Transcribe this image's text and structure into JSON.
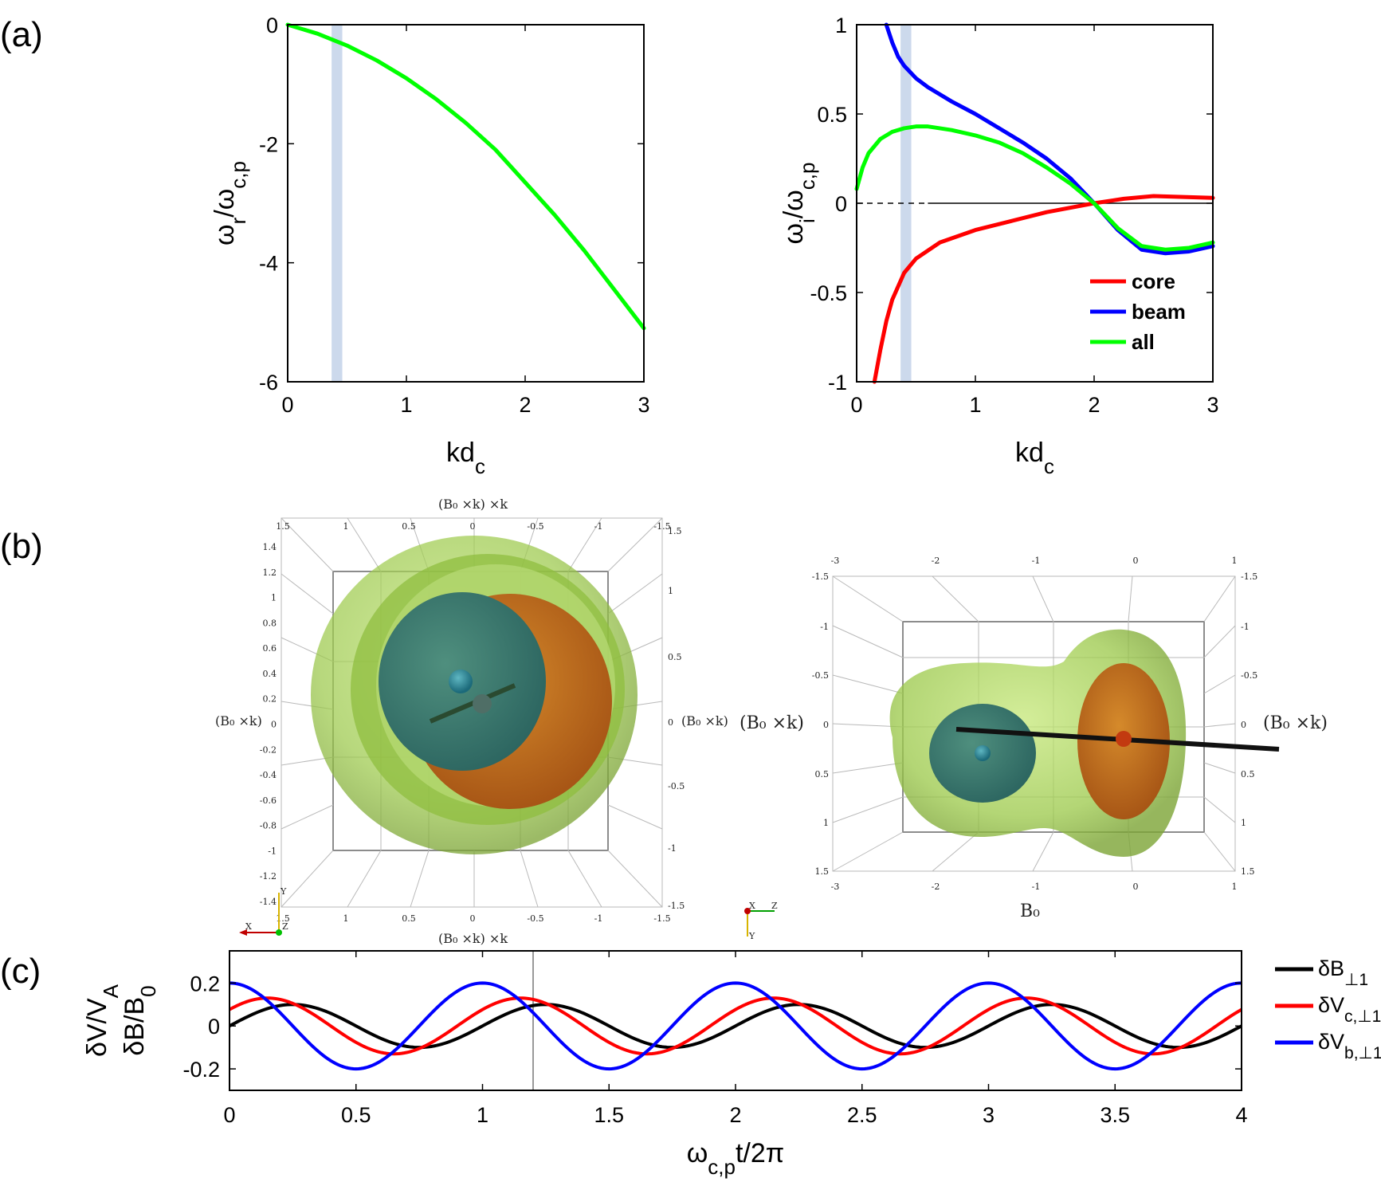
{
  "panel_labels": {
    "a": "(a)",
    "b": "(b)",
    "c": "(c)"
  },
  "colors": {
    "core": "#ff0000",
    "beam": "#0000ff",
    "all": "#00ff00",
    "highlight": "#c6d5ea",
    "dB": "#000000",
    "dVc": "#ff0000",
    "dVb": "#0000ff"
  },
  "chart_data": [
    {
      "id": "a-left",
      "type": "line",
      "xlabel_main": "kd",
      "xlabel_sub": "c",
      "ylabel": "ω_r/ω_c,p",
      "xlim": [
        0,
        3
      ],
      "ylim": [
        -6,
        0
      ],
      "xticks": [
        "0",
        "1",
        "2",
        "3"
      ],
      "yticks": [
        "0",
        "-2",
        "-4",
        "-6"
      ],
      "highlight_band": [
        0.37,
        0.46
      ],
      "series": [
        {
          "key": "all",
          "x": [
            0,
            0.25,
            0.5,
            0.75,
            1.0,
            1.25,
            1.5,
            1.75,
            2.0,
            2.25,
            2.5,
            2.75,
            3.0
          ],
          "values": [
            0,
            -0.15,
            -0.35,
            -0.6,
            -0.9,
            -1.25,
            -1.65,
            -2.1,
            -2.65,
            -3.2,
            -3.8,
            -4.45,
            -5.1
          ]
        }
      ]
    },
    {
      "id": "a-right",
      "type": "line",
      "xlabel_main": "kd",
      "xlabel_sub": "c",
      "ylabel": "ω_i/ω_c,p",
      "xlim": [
        0,
        3
      ],
      "ylim": [
        -1,
        1
      ],
      "xticks": [
        "0",
        "1",
        "2",
        "3"
      ],
      "yticks": [
        "1",
        "0.5",
        "0",
        "-0.5",
        "-1"
      ],
      "highlight_band": [
        0.37,
        0.46
      ],
      "legend": [
        "core",
        "beam",
        "all"
      ],
      "series": [
        {
          "name": "core",
          "key": "core",
          "x": [
            0.15,
            0.2,
            0.25,
            0.3,
            0.4,
            0.5,
            0.7,
            1.0,
            1.3,
            1.6,
            2.0,
            2.25,
            2.5,
            2.75,
            3.0
          ],
          "values": [
            -1.0,
            -0.82,
            -0.66,
            -0.54,
            -0.39,
            -0.31,
            -0.22,
            -0.15,
            -0.1,
            -0.05,
            0.0,
            0.025,
            0.04,
            0.035,
            0.03
          ]
        },
        {
          "name": "beam",
          "key": "beam",
          "x": [
            0.25,
            0.3,
            0.35,
            0.4,
            0.5,
            0.6,
            0.8,
            1.0,
            1.2,
            1.4,
            1.6,
            1.8,
            2.0,
            2.2,
            2.4,
            2.6,
            2.8,
            3.0
          ],
          "values": [
            1.0,
            0.9,
            0.82,
            0.77,
            0.7,
            0.65,
            0.57,
            0.5,
            0.42,
            0.34,
            0.25,
            0.14,
            0.0,
            -0.15,
            -0.26,
            -0.28,
            -0.27,
            -0.24
          ]
        },
        {
          "name": "all",
          "key": "all",
          "x": [
            0.0,
            0.05,
            0.1,
            0.2,
            0.3,
            0.4,
            0.5,
            0.6,
            0.8,
            1.0,
            1.2,
            1.4,
            1.6,
            1.8,
            2.0,
            2.2,
            2.4,
            2.6,
            2.8,
            3.0
          ],
          "values": [
            0.08,
            0.2,
            0.28,
            0.36,
            0.4,
            0.42,
            0.43,
            0.43,
            0.41,
            0.38,
            0.34,
            0.28,
            0.2,
            0.11,
            0.0,
            -0.14,
            -0.24,
            -0.26,
            -0.25,
            -0.22
          ]
        }
      ],
      "zero_line": true
    },
    {
      "id": "c",
      "type": "line",
      "xlabel": "ω_c,p t/2π",
      "ylabel_outer": "δV/V_A",
      "ylabel_inner": "δB/B_0",
      "xlim": [
        0,
        4
      ],
      "ylim": [
        -0.3,
        0.35
      ],
      "xticks": [
        "0",
        "0.5",
        "1",
        "1.5",
        "2",
        "2.5",
        "3",
        "3.5",
        "4"
      ],
      "yticks": [
        "0.2",
        "0",
        "-0.2"
      ],
      "marker_line_x": 1.2,
      "legend": [
        "δB⊥1",
        "δVc,⊥1",
        "δVb,⊥1"
      ],
      "series": [
        {
          "name": "δB⊥1",
          "key": "dB",
          "amplitude": 0.1,
          "period": 1.0,
          "phase_cycles": 0.0
        },
        {
          "name": "δVc,⊥1",
          "key": "dVc",
          "amplitude": 0.13,
          "period": 1.0,
          "phase_cycles": 0.1
        },
        {
          "name": "δVb,⊥1",
          "key": "dVb",
          "amplitude": 0.2,
          "period": 1.0,
          "phase_cycles": 0.25
        }
      ]
    }
  ],
  "panel_b": {
    "left": {
      "top_label": "(B₀ ×k) ×k",
      "bottom_label": "(B₀ ×k) ×k",
      "left_label": "(B₀ ×k)",
      "right_label": "(B₀ ×k)",
      "top_ticks": [
        "1.5",
        "1",
        "0.5",
        "0",
        "-0.5",
        "-1",
        "-1.5"
      ],
      "left_ticks": [
        "1.4",
        "1.2",
        "1",
        "0.8",
        "0.6",
        "0.4",
        "0.2",
        "0",
        "-0.2",
        "-0.4",
        "-0.6",
        "-0.8",
        "-1",
        "-1.2",
        "-1.4"
      ],
      "right_ticks": [
        "1.5",
        "1",
        "0.5",
        "0",
        "-0.5",
        "-1",
        "-1.5"
      ],
      "axes_triad": {
        "x": "X",
        "y": "Y",
        "z": "Z"
      }
    },
    "right": {
      "top_ticks": [
        "-3",
        "-2",
        "-1",
        "0",
        "1"
      ],
      "left_ticks": [
        "-1.5",
        "-1",
        "-0.5",
        "0",
        "0.5",
        "1",
        "1.5"
      ],
      "right_ticks": [
        "-1.5",
        "-1",
        "-0.5",
        "0",
        "0.5",
        "1",
        "1.5"
      ],
      "bottom_ticks": [
        "-3",
        "-2",
        "-1",
        "0",
        "1"
      ],
      "left_label": "(B₀ ×k)",
      "right_label": "(B₀ ×k)",
      "bottom_label": "B₀",
      "axes_triad": {
        "x": "X",
        "y": "Y",
        "z": "Z"
      }
    }
  }
}
